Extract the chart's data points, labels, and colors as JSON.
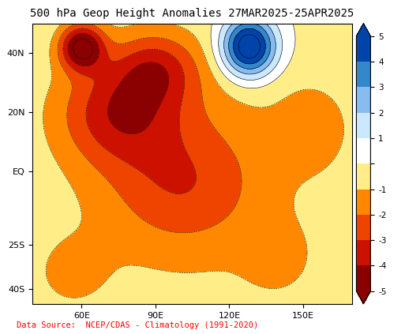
{
  "title": "500 hPa Geop Height Anomalies 27MAR2025-25APR2025",
  "data_source": "Data Source:  NCEP/CDAS - Climatology (1991-2020)",
  "lon_min": 40,
  "lon_max": 170,
  "lat_min": -45,
  "lat_max": 50,
  "levels": [
    -5,
    -4,
    -3,
    -2,
    -1,
    0,
    1,
    2,
    3,
    4,
    5
  ],
  "colors_list": [
    "#8B0000",
    "#CC1100",
    "#EE4400",
    "#FF8800",
    "#FFEE88",
    "#FFFFFF",
    "#CCE8FF",
    "#88BBEE",
    "#3388CC",
    "#0044AA",
    "#000088"
  ],
  "title_fontsize": 10,
  "label_fontsize": 8,
  "source_color": "#FF0000",
  "background_color": "#FFFFFF",
  "xticks": [
    60,
    90,
    120,
    150
  ],
  "yticks": [
    -40,
    -25,
    0,
    20,
    40
  ],
  "gaussians": [
    {
      "lon": 128,
      "lat": 42,
      "alon": 120,
      "alat": 100,
      "amp": 6.5
    },
    {
      "lon": 60,
      "lat": 42,
      "alon": 80,
      "alat": 60,
      "amp": -5.0
    },
    {
      "lon": 75,
      "lat": 20,
      "alon": 600,
      "alat": 300,
      "amp": -3.0
    },
    {
      "lon": 100,
      "lat": -5,
      "alon": 800,
      "alat": 400,
      "amp": -1.5
    },
    {
      "lon": 55,
      "lat": -35,
      "alon": 300,
      "alat": 200,
      "amp": -1.0
    },
    {
      "lon": 155,
      "lat": 15,
      "alon": 200,
      "alat": 200,
      "amp": -1.2
    },
    {
      "lon": 140,
      "lat": -30,
      "alon": 200,
      "alat": 150,
      "amp": -1.0
    },
    {
      "lon": 90,
      "lat": 35,
      "alon": 300,
      "alat": 150,
      "amp": -2.5
    }
  ]
}
